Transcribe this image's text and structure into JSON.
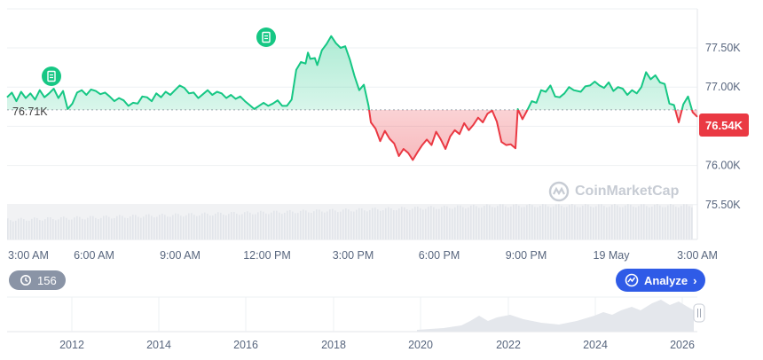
{
  "chart_data": {
    "type": "line",
    "reference_value": 76710,
    "reference_label": "76.71K",
    "current_label": "76.54K",
    "y_ticks": [
      "77.50K",
      "77.00K",
      "76.50K",
      "76.00K",
      "75.50K"
    ],
    "y_tick_values": [
      77500,
      77000,
      76500,
      76000,
      75500
    ],
    "x_ticks": [
      "3:00 AM",
      "6:00 AM",
      "9:00 AM",
      "12:00 PM",
      "3:00 PM",
      "6:00 PM",
      "9:00 PM",
      "19 May",
      "3:00 AM"
    ],
    "ylim": [
      75300,
      77800
    ],
    "x_range_hours": [
      0,
      24.3
    ],
    "colors": {
      "up": "#16c784",
      "down": "#ea3943",
      "up_fill": "#16c784",
      "down_fill": "#ea3943"
    },
    "points": [
      [
        0,
        76870
      ],
      [
        0.2,
        76930
      ],
      [
        0.4,
        76820
      ],
      [
        0.6,
        76940
      ],
      [
        0.8,
        76860
      ],
      [
        1.0,
        76920
      ],
      [
        1.2,
        76840
      ],
      [
        1.4,
        76960
      ],
      [
        1.6,
        76870
      ],
      [
        1.8,
        76920
      ],
      [
        2.0,
        76980
      ],
      [
        2.2,
        76860
      ],
      [
        2.4,
        76950
      ],
      [
        2.6,
        76720
      ],
      [
        2.8,
        76790
      ],
      [
        3.0,
        76930
      ],
      [
        3.2,
        76960
      ],
      [
        3.4,
        76900
      ],
      [
        3.6,
        76970
      ],
      [
        3.8,
        76950
      ],
      [
        4.0,
        76910
      ],
      [
        4.2,
        76930
      ],
      [
        4.4,
        76880
      ],
      [
        4.6,
        76820
      ],
      [
        4.8,
        76860
      ],
      [
        5.0,
        76830
      ],
      [
        5.2,
        76760
      ],
      [
        5.4,
        76800
      ],
      [
        5.6,
        76790
      ],
      [
        5.8,
        76880
      ],
      [
        6.0,
        76870
      ],
      [
        6.2,
        76820
      ],
      [
        6.4,
        76920
      ],
      [
        6.6,
        76870
      ],
      [
        6.8,
        76940
      ],
      [
        7.0,
        76900
      ],
      [
        7.2,
        76960
      ],
      [
        7.4,
        77020
      ],
      [
        7.6,
        76990
      ],
      [
        7.8,
        76920
      ],
      [
        8.0,
        76930
      ],
      [
        8.2,
        76860
      ],
      [
        8.4,
        76910
      ],
      [
        8.6,
        76960
      ],
      [
        8.8,
        76900
      ],
      [
        9.0,
        76940
      ],
      [
        9.2,
        76920
      ],
      [
        9.4,
        76860
      ],
      [
        9.6,
        76900
      ],
      [
        9.8,
        76850
      ],
      [
        10.0,
        76880
      ],
      [
        10.2,
        76820
      ],
      [
        10.4,
        76770
      ],
      [
        10.6,
        76720
      ],
      [
        10.8,
        76760
      ],
      [
        11.0,
        76800
      ],
      [
        11.2,
        76760
      ],
      [
        11.4,
        76790
      ],
      [
        11.6,
        76830
      ],
      [
        11.8,
        76760
      ],
      [
        12.0,
        76760
      ],
      [
        12.2,
        76840
      ],
      [
        12.4,
        77220
      ],
      [
        12.6,
        77320
      ],
      [
        12.8,
        77300
      ],
      [
        12.9,
        77440
      ],
      [
        13.0,
        77360
      ],
      [
        13.2,
        77370
      ],
      [
        13.3,
        77280
      ],
      [
        13.5,
        77470
      ],
      [
        13.7,
        77550
      ],
      [
        13.9,
        77650
      ],
      [
        14.1,
        77560
      ],
      [
        14.3,
        77500
      ],
      [
        14.5,
        77520
      ],
      [
        14.7,
        77350
      ],
      [
        14.9,
        77140
      ],
      [
        15.1,
        76960
      ],
      [
        15.3,
        77030
      ],
      [
        15.5,
        76760
      ],
      [
        15.6,
        76550
      ],
      [
        15.8,
        76470
      ],
      [
        16.0,
        76310
      ],
      [
        16.2,
        76440
      ],
      [
        16.4,
        76340
      ],
      [
        16.6,
        76280
      ],
      [
        16.8,
        76120
      ],
      [
        17.0,
        76210
      ],
      [
        17.2,
        76160
      ],
      [
        17.4,
        76070
      ],
      [
        17.6,
        76170
      ],
      [
        17.8,
        76260
      ],
      [
        18.0,
        76330
      ],
      [
        18.2,
        76260
      ],
      [
        18.4,
        76430
      ],
      [
        18.6,
        76330
      ],
      [
        18.8,
        76210
      ],
      [
        19.0,
        76370
      ],
      [
        19.2,
        76450
      ],
      [
        19.4,
        76400
      ],
      [
        19.6,
        76540
      ],
      [
        19.8,
        76450
      ],
      [
        20.0,
        76520
      ],
      [
        20.2,
        76610
      ],
      [
        20.4,
        76550
      ],
      [
        20.6,
        76660
      ],
      [
        20.8,
        76700
      ],
      [
        21.0,
        76560
      ],
      [
        21.2,
        76300
      ],
      [
        21.4,
        76260
      ],
      [
        21.6,
        76270
      ],
      [
        21.8,
        76220
      ],
      [
        21.9,
        76720
      ],
      [
        22.1,
        76590
      ],
      [
        22.3,
        76700
      ],
      [
        22.5,
        76820
      ],
      [
        22.7,
        76800
      ],
      [
        22.9,
        76960
      ],
      [
        23.1,
        76940
      ],
      [
        23.3,
        77020
      ],
      [
        23.5,
        76880
      ],
      [
        23.7,
        76870
      ],
      [
        23.9,
        76920
      ],
      [
        24.1,
        77000
      ],
      [
        24.3,
        76960
      ]
    ],
    "points_tail": [
      [
        24.6,
        76940
      ],
      [
        24.8,
        77010
      ],
      [
        25.0,
        77020
      ],
      [
        25.2,
        77070
      ],
      [
        25.4,
        77020
      ],
      [
        25.6,
        76990
      ],
      [
        25.8,
        77060
      ],
      [
        26.0,
        76950
      ],
      [
        26.2,
        77000
      ],
      [
        26.4,
        76980
      ],
      [
        26.6,
        76900
      ],
      [
        26.8,
        76960
      ],
      [
        27.0,
        76920
      ],
      [
        27.2,
        77000
      ],
      [
        27.4,
        77190
      ],
      [
        27.6,
        77100
      ],
      [
        27.8,
        77150
      ],
      [
        28.0,
        77060
      ],
      [
        28.2,
        77040
      ],
      [
        28.4,
        76790
      ],
      [
        28.6,
        76770
      ],
      [
        28.8,
        76550
      ],
      [
        29.0,
        76780
      ],
      [
        29.2,
        76880
      ],
      [
        29.4,
        76680
      ],
      [
        29.6,
        76620
      ]
    ],
    "history": {
      "x_ticks": [
        "2012",
        "2014",
        "2016",
        "2018",
        "2020",
        "2022",
        "2024",
        "2026"
      ],
      "badge_count": "156",
      "action_label": "Analyze"
    },
    "watermark": "CoinMarketCap"
  }
}
